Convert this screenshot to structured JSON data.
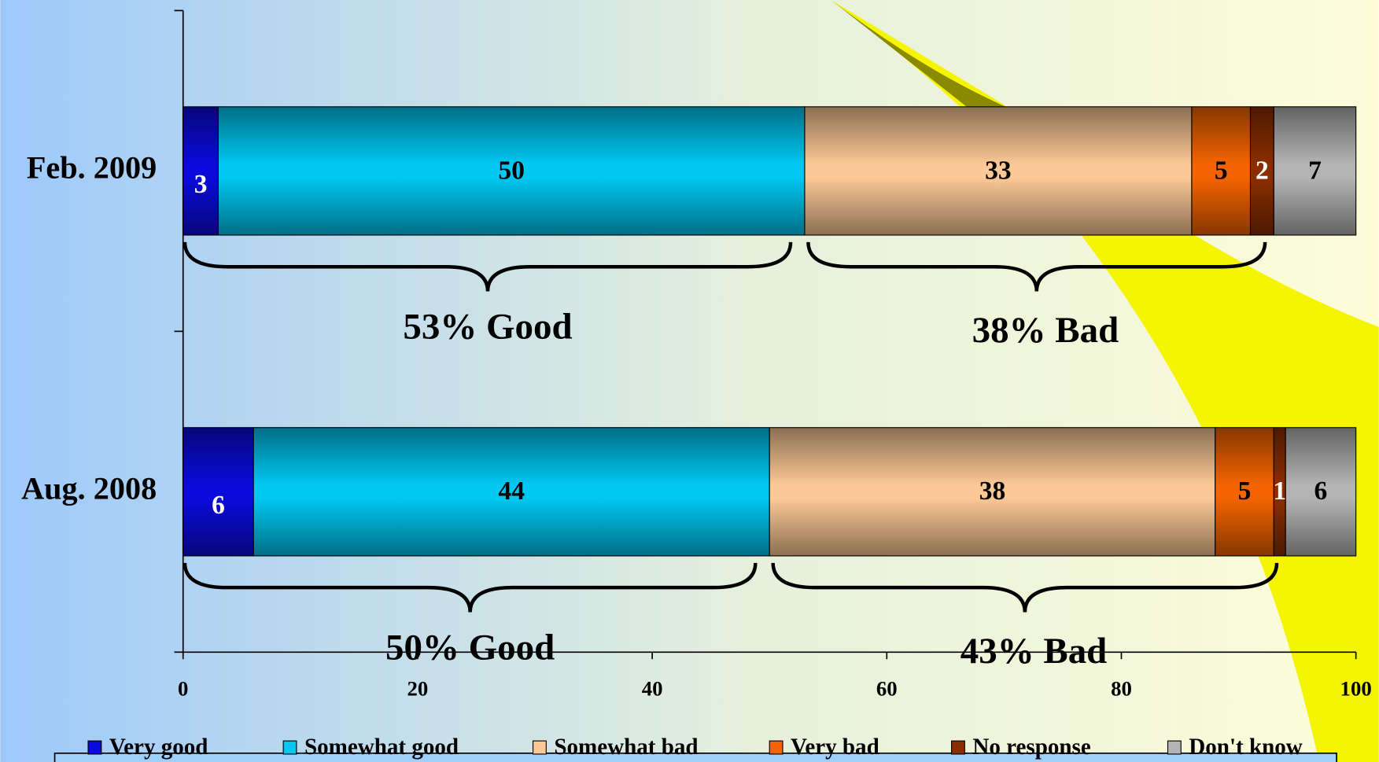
{
  "chart_data": {
    "type": "stacked-bar-horizontal",
    "categories": [
      "Feb. 2009",
      "Aug. 2008"
    ],
    "series": [
      {
        "name": "Very good",
        "color": "#0a0adc",
        "label_color": "#ffffff",
        "values": [
          3,
          6
        ]
      },
      {
        "name": "Somewhat good",
        "color": "#00c8f2",
        "label_color": "#000000",
        "values": [
          50,
          44
        ]
      },
      {
        "name": "Somewhat bad",
        "color": "#fcc996",
        "label_color": "#000000",
        "values": [
          33,
          38
        ]
      },
      {
        "name": "Very bad",
        "color": "#f46400",
        "label_color": "#000000",
        "values": [
          5,
          5
        ]
      },
      {
        "name": "No response",
        "color": "#8a2e00",
        "label_color": "#ffffff",
        "values": [
          2,
          1
        ]
      },
      {
        "name": "Don't know",
        "color": "#b4b4b4",
        "label_color": "#000000",
        "values": [
          7,
          6
        ]
      }
    ],
    "annotations": [
      {
        "good": "53% Good",
        "bad": "38% Bad"
      },
      {
        "good": "50% Good",
        "bad": "43% Bad"
      }
    ],
    "xlim": [
      0,
      100
    ],
    "xticks": [
      0,
      20,
      40,
      60,
      80,
      100
    ],
    "legend": "bottom"
  }
}
